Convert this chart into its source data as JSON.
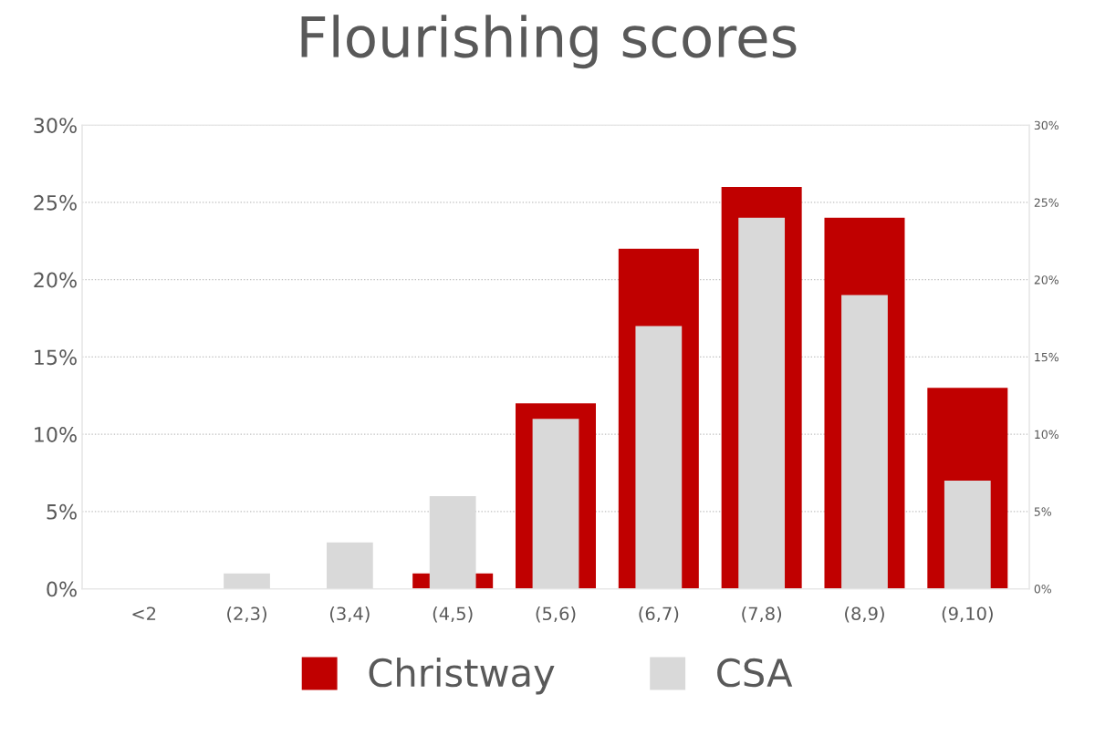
{
  "chart_data": {
    "type": "bar",
    "title": "Flourishing scores",
    "categories": [
      "<2",
      "(2,3)",
      "(3,4)",
      "(4,5)",
      "(5,6)",
      "(6,7)",
      "(7,8)",
      "(8,9)",
      "(9,10)"
    ],
    "series": [
      {
        "name": "Christway",
        "color": "#c00000",
        "values": [
          0,
          0,
          0,
          1,
          12,
          22,
          26,
          24,
          13
        ]
      },
      {
        "name": "CSA",
        "color": "#d9d9d9",
        "axis": "y2",
        "values": [
          0,
          1,
          3,
          6,
          11,
          17,
          24,
          19,
          7
        ]
      }
    ],
    "ylim": [
      0,
      30
    ],
    "yticks": [
      {
        "value": 0,
        "label": "0%"
      },
      {
        "value": 5,
        "label": "5%"
      },
      {
        "value": 10,
        "label": "10%"
      },
      {
        "value": 15,
        "label": "15%"
      },
      {
        "value": 20,
        "label": "20%"
      },
      {
        "value": 25,
        "label": "25%"
      },
      {
        "value": 30,
        "label": "30%"
      }
    ],
    "y2lim": [
      0,
      30
    ],
    "y2ticks": [
      {
        "value": 0,
        "label": "0%"
      },
      {
        "value": 5,
        "label": "5%"
      },
      {
        "value": 10,
        "label": "10%"
      },
      {
        "value": 15,
        "label": "15%"
      },
      {
        "value": 20,
        "label": "20%"
      },
      {
        "value": 25,
        "label": "25%"
      },
      {
        "value": 30,
        "label": "30%"
      }
    ],
    "grid": "y",
    "legend": "bottom"
  }
}
